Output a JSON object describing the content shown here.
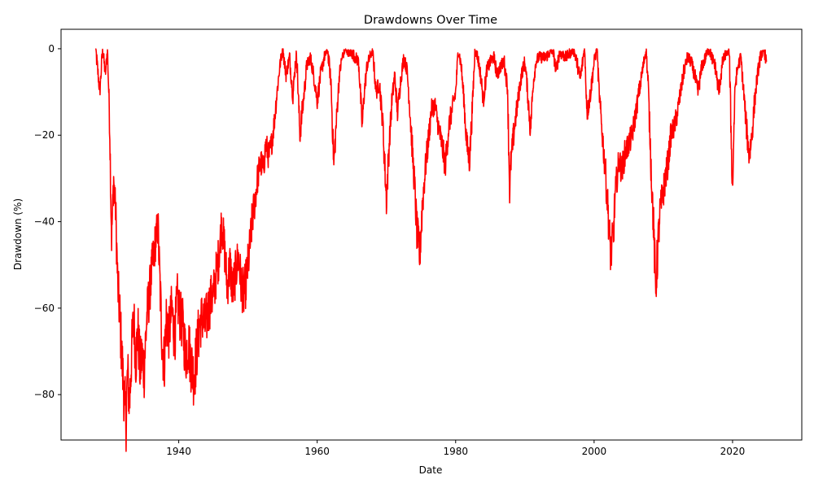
{
  "chart_data": {
    "type": "line",
    "title": "Drawdowns Over Time",
    "xlabel": "Date",
    "ylabel": "Drawdown (%)",
    "xlim": [
      1923,
      2030
    ],
    "ylim": [
      -90.5,
      4.5
    ],
    "xticks": [
      1940,
      1960,
      1980,
      2000,
      2020
    ],
    "yticks": [
      0,
      -20,
      -40,
      -60,
      -80
    ],
    "grid": false,
    "legend": "none",
    "series": [
      {
        "color": "#ff0000",
        "x": [
          1928.0,
          1928.6,
          1929.0,
          1929.4,
          1929.7,
          1929.85,
          1930.0,
          1930.3,
          1930.6,
          1930.9,
          1931.2,
          1931.5,
          1931.8,
          1932.1,
          1932.4,
          1932.6,
          1932.9,
          1933.2,
          1933.5,
          1933.8,
          1934.1,
          1934.4,
          1934.7,
          1935.0,
          1935.4,
          1935.8,
          1936.2,
          1936.6,
          1937.0,
          1937.3,
          1937.6,
          1937.9,
          1938.2,
          1938.6,
          1939.0,
          1939.4,
          1939.8,
          1940.2,
          1940.6,
          1941.0,
          1941.4,
          1941.8,
          1942.2,
          1942.6,
          1943.0,
          1943.4,
          1943.8,
          1944.2,
          1944.6,
          1945.0,
          1945.4,
          1945.8,
          1946.2,
          1946.6,
          1947.0,
          1947.4,
          1947.8,
          1948.2,
          1948.6,
          1949.0,
          1949.4,
          1949.8,
          1950.2,
          1950.6,
          1951.0,
          1951.4,
          1951.8,
          1952.2,
          1952.6,
          1953.0,
          1953.4,
          1953.8,
          1954.2,
          1954.6,
          1955.0,
          1955.5,
          1956.0,
          1956.5,
          1957.0,
          1957.5,
          1958.0,
          1958.5,
          1959.0,
          1959.5,
          1960.0,
          1960.5,
          1961.0,
          1961.5,
          1962.0,
          1962.4,
          1962.8,
          1963.2,
          1963.6,
          1964.0,
          1965.0,
          1966.0,
          1966.5,
          1966.8,
          1967.2,
          1967.6,
          1968.0,
          1968.5,
          1969.0,
          1969.5,
          1970.0,
          1970.4,
          1970.8,
          1971.2,
          1971.6,
          1972.0,
          1972.5,
          1973.0,
          1973.5,
          1974.0,
          1974.4,
          1974.8,
          1975.2,
          1975.6,
          1976.0,
          1976.5,
          1977.0,
          1977.5,
          1978.0,
          1978.5,
          1979.0,
          1979.5,
          1980.0,
          1980.4,
          1980.8,
          1981.2,
          1981.6,
          1982.0,
          1982.4,
          1982.8,
          1983.2,
          1983.6,
          1984.0,
          1984.5,
          1985.0,
          1985.5,
          1986.0,
          1986.5,
          1987.0,
          1987.5,
          1987.8,
          1988.0,
          1988.5,
          1989.0,
          1989.5,
          1990.0,
          1990.4,
          1990.8,
          1991.2,
          1991.6,
          1992.0,
          1993.0,
          1994.0,
          1994.5,
          1995.0,
          1996.0,
          1997.0,
          1997.5,
          1998.0,
          1998.6,
          1999.0,
          1999.5,
          2000.0,
          2000.4,
          2000.8,
          2001.2,
          2001.6,
          2002.0,
          2002.4,
          2002.8,
          2003.0,
          2003.3,
          2003.6,
          2004.0,
          2004.5,
          2005.0,
          2005.5,
          2006.0,
          2006.5,
          2007.0,
          2007.5,
          2007.8,
          2008.2,
          2008.6,
          2008.9,
          2009.2,
          2009.5,
          2009.9,
          2010.3,
          2010.7,
          2011.1,
          2011.6,
          2012.0,
          2012.5,
          2013.0,
          2013.5,
          2014.0,
          2014.5,
          2015.0,
          2015.6,
          2016.1,
          2016.6,
          2017.0,
          2017.5,
          2018.0,
          2018.6,
          2019.0,
          2019.5,
          2020.0,
          2020.2,
          2020.4,
          2020.8,
          2021.2,
          2021.6,
          2022.0,
          2022.4,
          2022.8,
          2023.2,
          2023.6,
          2024.0,
          2024.5,
          2024.9
        ],
        "y": [
          0,
          -10,
          0,
          -6,
          0,
          -8,
          -15,
          -44,
          -30,
          -38,
          -55,
          -62,
          -72,
          -80,
          -86,
          -75,
          -82,
          -70,
          -62,
          -72,
          -65,
          -74,
          -71,
          -74,
          -62,
          -56,
          -50,
          -45,
          -41,
          -55,
          -68,
          -73,
          -62,
          -66,
          -60,
          -67,
          -58,
          -62,
          -64,
          -71,
          -68,
          -73,
          -76,
          -70,
          -64,
          -62,
          -64,
          -61,
          -58,
          -57,
          -52,
          -48,
          -40,
          -46,
          -55,
          -50,
          -56,
          -52,
          -48,
          -54,
          -57,
          -53,
          -47,
          -40,
          -35,
          -30,
          -26,
          -28,
          -22,
          -25,
          -22,
          -17,
          -10,
          -4,
          0,
          -6,
          -2,
          -11,
          0,
          -20,
          -12,
          -4,
          -2,
          -6,
          -12,
          -6,
          -2,
          0,
          -8,
          -27,
          -16,
          -6,
          -2,
          0,
          -1,
          -3,
          -18,
          -10,
          -4,
          -2,
          0,
          -10,
          -8,
          -18,
          -35,
          -22,
          -12,
          -6,
          -15,
          -8,
          -2,
          -5,
          -17,
          -30,
          -42,
          -48,
          -36,
          -28,
          -22,
          -14,
          -13,
          -18,
          -22,
          -27,
          -18,
          -14,
          -10,
          0,
          -4,
          -12,
          -22,
          -26,
          -14,
          0,
          -2,
          -6,
          -12,
          -5,
          -3,
          -2,
          -6,
          -4,
          -3,
          -9,
          -33,
          -26,
          -18,
          -12,
          -6,
          -3,
          -10,
          -19,
          -8,
          -3,
          -2,
          -2,
          0,
          -5,
          -1,
          -2,
          0,
          -3,
          -7,
          0,
          -15,
          -10,
          -3,
          0,
          -12,
          -20,
          -28,
          -37,
          -48,
          -43,
          -35,
          -30,
          -26,
          -28,
          -24,
          -22,
          -20,
          -15,
          -10,
          -5,
          0,
          -8,
          -26,
          -42,
          -56,
          -46,
          -38,
          -34,
          -30,
          -26,
          -20,
          -18,
          -15,
          -10,
          -5,
          -2,
          -3,
          -6,
          -10,
          -4,
          -2,
          0,
          -2,
          -4,
          -10,
          -3,
          -1,
          0,
          -33,
          -18,
          -8,
          -4,
          -2,
          -10,
          -18,
          -25,
          -20,
          -12,
          -6,
          -2,
          0,
          -3
        ]
      }
    ]
  }
}
